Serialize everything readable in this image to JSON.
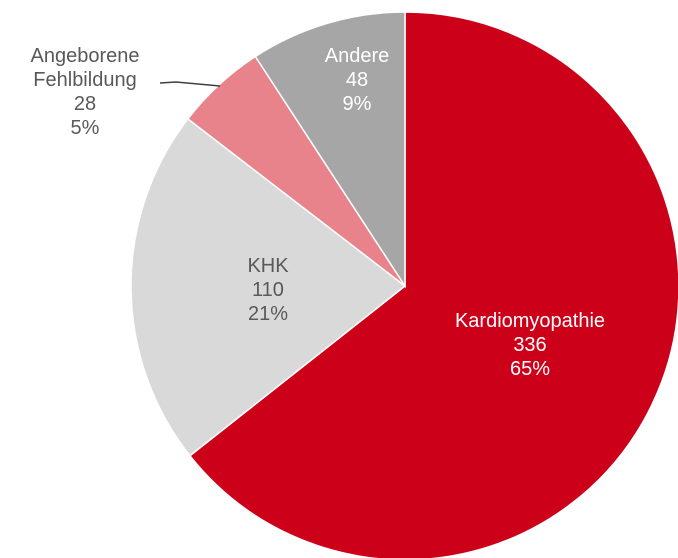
{
  "chart_data": {
    "type": "pie",
    "categories": [
      "Kardiomyopathie",
      "KHK",
      "Angeborene Fehlbildung",
      "Andere"
    ],
    "values": [
      336,
      110,
      28,
      48
    ],
    "percent_labels": [
      "65%",
      "21%",
      "5%",
      "9%"
    ],
    "colors": [
      "#cc0019",
      "#d9d9d9",
      "#e8828b",
      "#a6a6a6"
    ]
  }
}
